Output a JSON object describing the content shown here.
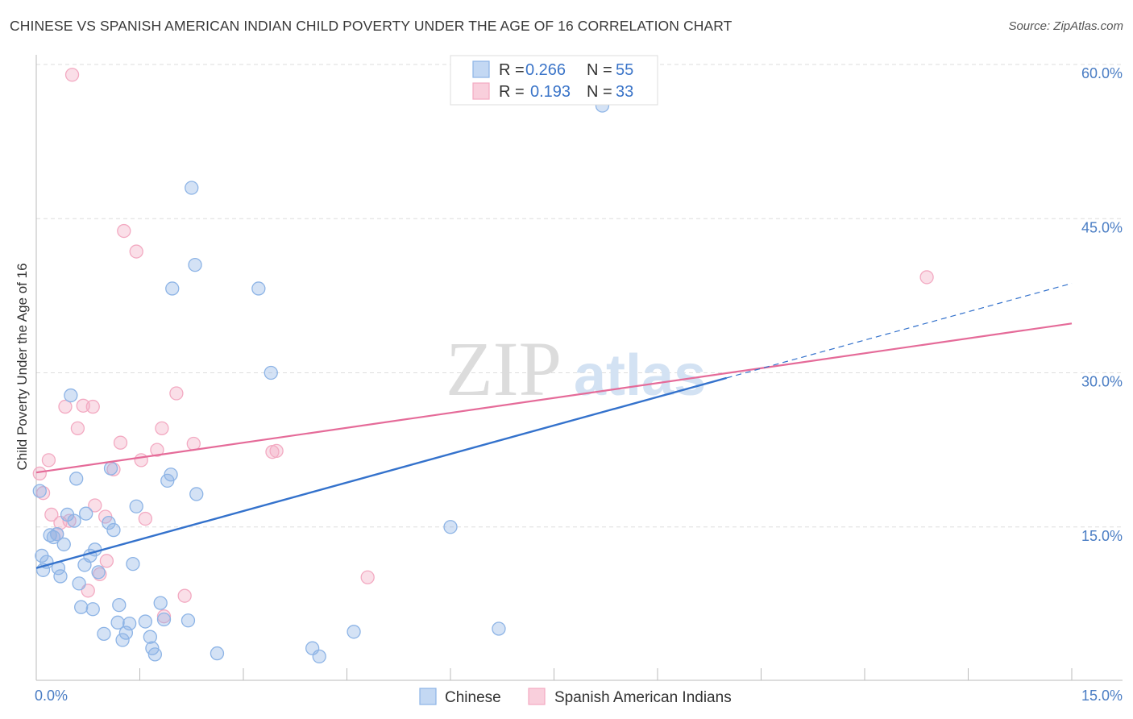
{
  "chart_data": {
    "type": "scatter",
    "title": "CHINESE VS SPANISH AMERICAN INDIAN CHILD POVERTY UNDER THE AGE OF 16 CORRELATION CHART",
    "source": "Source: ZipAtlas.com",
    "watermark": {
      "zip": "ZIP",
      "atlas": "atlas"
    },
    "xlabel": "",
    "ylabel": "Child Poverty Under the Age of 16",
    "xlim": [
      0,
      15
    ],
    "ylim": [
      0,
      61
    ],
    "x_tick_labels": [
      {
        "value": 0,
        "label": "0.0%"
      },
      {
        "value": 15,
        "label": "15.0%"
      }
    ],
    "y_tick_labels": [
      {
        "value": 15,
        "label": "15.0%"
      },
      {
        "value": 30,
        "label": "30.0%"
      },
      {
        "value": 45,
        "label": "45.0%"
      },
      {
        "value": 60,
        "label": "60.0%"
      }
    ],
    "x_minor_ticks": [
      1.5,
      3.0,
      4.5,
      6.0,
      7.5,
      9.0,
      10.5,
      12.0,
      13.5,
      15.0
    ],
    "grid": true,
    "legend_position": "top-center",
    "legend": [
      {
        "r_label": "R =",
        "r_value": "0.266",
        "n_label": "N =",
        "n_value": "55"
      },
      {
        "r_label": "R =",
        "r_value": "0.193",
        "n_label": "N =",
        "n_value": "33"
      }
    ],
    "series": [
      {
        "name": "Chinese",
        "color": "#8db4e6",
        "line_color": "#3472cc",
        "trend": {
          "x0": 0,
          "y0": 11.0,
          "x1": 10.0,
          "y1": 29.5,
          "dash_to_x": 15,
          "dash_to_y": 38.7
        },
        "points": [
          [
            0.05,
            18.5
          ],
          [
            0.08,
            12.2
          ],
          [
            0.1,
            10.8
          ],
          [
            0.15,
            11.6
          ],
          [
            0.2,
            14.2
          ],
          [
            0.25,
            14.0
          ],
          [
            0.3,
            14.3
          ],
          [
            0.32,
            11.0
          ],
          [
            0.35,
            10.2
          ],
          [
            0.4,
            13.3
          ],
          [
            0.45,
            16.2
          ],
          [
            0.5,
            27.8
          ],
          [
            0.55,
            15.6
          ],
          [
            0.58,
            19.7
          ],
          [
            0.62,
            9.5
          ],
          [
            0.65,
            7.2
          ],
          [
            0.7,
            11.3
          ],
          [
            0.72,
            16.3
          ],
          [
            0.78,
            12.2
          ],
          [
            0.82,
            7.0
          ],
          [
            0.85,
            12.8
          ],
          [
            0.9,
            10.6
          ],
          [
            0.98,
            4.6
          ],
          [
            1.05,
            15.4
          ],
          [
            1.08,
            20.7
          ],
          [
            1.12,
            14.7
          ],
          [
            1.18,
            5.7
          ],
          [
            1.2,
            7.4
          ],
          [
            1.25,
            4.0
          ],
          [
            1.3,
            4.7
          ],
          [
            1.35,
            5.6
          ],
          [
            1.4,
            11.4
          ],
          [
            1.45,
            17.0
          ],
          [
            1.58,
            5.8
          ],
          [
            1.65,
            4.3
          ],
          [
            1.68,
            3.2
          ],
          [
            1.72,
            2.6
          ],
          [
            1.8,
            7.6
          ],
          [
            1.85,
            6.0
          ],
          [
            1.9,
            19.5
          ],
          [
            1.95,
            20.1
          ],
          [
            1.97,
            38.2
          ],
          [
            2.2,
            5.9
          ],
          [
            2.25,
            48.0
          ],
          [
            2.3,
            40.5
          ],
          [
            2.32,
            18.2
          ],
          [
            2.62,
            2.7
          ],
          [
            3.22,
            38.2
          ],
          [
            3.4,
            30.0
          ],
          [
            4.0,
            3.2
          ],
          [
            4.1,
            2.4
          ],
          [
            4.6,
            4.8
          ],
          [
            6.0,
            15.0
          ],
          [
            6.7,
            5.1
          ],
          [
            8.2,
            56.0
          ]
        ]
      },
      {
        "name": "Spanish American Indians",
        "color": "#f3aac2",
        "line_color": "#e56b99",
        "trend": {
          "x0": 0,
          "y0": 20.3,
          "x1": 15,
          "y1": 34.8
        },
        "points": [
          [
            0.05,
            20.2
          ],
          [
            0.1,
            18.3
          ],
          [
            0.18,
            21.5
          ],
          [
            0.22,
            16.2
          ],
          [
            0.3,
            14.3
          ],
          [
            0.35,
            15.4
          ],
          [
            0.42,
            26.7
          ],
          [
            0.48,
            15.6
          ],
          [
            0.52,
            59.0
          ],
          [
            0.6,
            24.6
          ],
          [
            0.68,
            26.8
          ],
          [
            0.75,
            8.8
          ],
          [
            0.82,
            26.7
          ],
          [
            0.85,
            17.1
          ],
          [
            0.92,
            10.4
          ],
          [
            1.0,
            16.0
          ],
          [
            1.02,
            11.7
          ],
          [
            1.12,
            20.6
          ],
          [
            1.22,
            23.2
          ],
          [
            1.27,
            43.8
          ],
          [
            1.45,
            41.8
          ],
          [
            1.52,
            21.5
          ],
          [
            1.58,
            15.8
          ],
          [
            1.75,
            22.5
          ],
          [
            1.82,
            24.6
          ],
          [
            1.85,
            6.3
          ],
          [
            2.03,
            28.0
          ],
          [
            2.15,
            8.3
          ],
          [
            2.28,
            23.1
          ],
          [
            3.42,
            22.3
          ],
          [
            3.48,
            22.4
          ],
          [
            4.8,
            10.1
          ],
          [
            12.9,
            39.3
          ]
        ]
      }
    ]
  }
}
